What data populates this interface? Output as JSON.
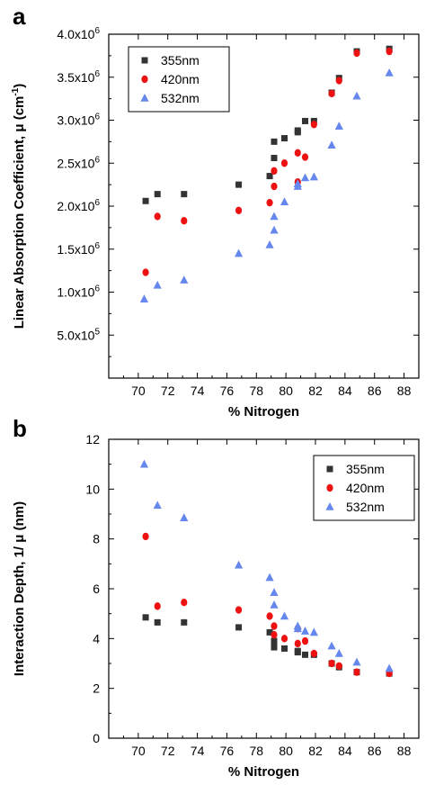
{
  "chart_data": [
    {
      "panel_label": "a",
      "type": "scatter",
      "xlabel": "% Nitrogen",
      "ylabel": "Linear Absorption Coefficient, μ",
      "ylabel_unit": " (cm",
      "ylabel_unit_sup": "-1",
      "ylabel_unit_end": ")",
      "xlim": [
        68,
        89
      ],
      "ylim": [
        0,
        4000000
      ],
      "x_ticks": [
        {
          "value": 70,
          "label": "70"
        },
        {
          "value": 72,
          "label": "72"
        },
        {
          "value": 74,
          "label": "74"
        },
        {
          "value": 76,
          "label": "76"
        },
        {
          "value": 78,
          "label": "78"
        },
        {
          "value": 80,
          "label": "80"
        },
        {
          "value": 82,
          "label": "82"
        },
        {
          "value": 84,
          "label": "84"
        },
        {
          "value": 86,
          "label": "86"
        },
        {
          "value": 88,
          "label": "88"
        }
      ],
      "y_ticks": [
        {
          "value": 500000,
          "label": "5.0x10",
          "exp": "5"
        },
        {
          "value": 1000000,
          "label": "1.0x10",
          "exp": "6"
        },
        {
          "value": 1500000,
          "label": "1.5x10",
          "exp": "6"
        },
        {
          "value": 2000000,
          "label": "2.0x10",
          "exp": "6"
        },
        {
          "value": 2500000,
          "label": "2.5x10",
          "exp": "6"
        },
        {
          "value": 3000000,
          "label": "3.0x10",
          "exp": "6"
        },
        {
          "value": 3500000,
          "label": "3.5x10",
          "exp": "6"
        },
        {
          "value": 4000000,
          "label": "4.0x10",
          "exp": "6"
        }
      ],
      "legend_position": "top-left",
      "series": [
        {
          "name": "355nm",
          "marker": "square",
          "color": "#333333",
          "points": [
            [
              70.5,
              2060000
            ],
            [
              71.3,
              2140000
            ],
            [
              73.1,
              2140000
            ],
            [
              76.8,
              2250000
            ],
            [
              78.9,
              2350000
            ],
            [
              79.2,
              2560000
            ],
            [
              79.2,
              2750000
            ],
            [
              79.9,
              2790000
            ],
            [
              80.8,
              2860000
            ],
            [
              80.8,
              2880000
            ],
            [
              81.3,
              2990000
            ],
            [
              81.9,
              2990000
            ],
            [
              83.1,
              3320000
            ],
            [
              83.6,
              3490000
            ],
            [
              84.8,
              3800000
            ],
            [
              87.0,
              3830000
            ]
          ]
        },
        {
          "name": "420nm",
          "marker": "circle",
          "color": "#ee1111",
          "points": [
            [
              70.5,
              1230000
            ],
            [
              71.3,
              1880000
            ],
            [
              73.1,
              1830000
            ],
            [
              76.8,
              1950000
            ],
            [
              78.9,
              2040000
            ],
            [
              79.2,
              2230000
            ],
            [
              79.2,
              2410000
            ],
            [
              79.9,
              2500000
            ],
            [
              80.8,
              2280000
            ],
            [
              80.8,
              2620000
            ],
            [
              81.3,
              2570000
            ],
            [
              81.9,
              2950000
            ],
            [
              83.1,
              3310000
            ],
            [
              83.6,
              3460000
            ],
            [
              84.8,
              3780000
            ],
            [
              87.0,
              3800000
            ]
          ]
        },
        {
          "name": "532nm",
          "marker": "triangle",
          "color": "#6688ee",
          "points": [
            [
              70.4,
              920000
            ],
            [
              71.3,
              1080000
            ],
            [
              73.1,
              1140000
            ],
            [
              76.8,
              1450000
            ],
            [
              78.9,
              1550000
            ],
            [
              79.2,
              1720000
            ],
            [
              79.2,
              1880000
            ],
            [
              79.9,
              2050000
            ],
            [
              80.8,
              2230000
            ],
            [
              80.8,
              2260000
            ],
            [
              81.3,
              2330000
            ],
            [
              81.9,
              2340000
            ],
            [
              83.1,
              2710000
            ],
            [
              83.6,
              2930000
            ],
            [
              84.8,
              3280000
            ],
            [
              87.0,
              3550000
            ]
          ]
        }
      ]
    },
    {
      "panel_label": "b",
      "type": "scatter",
      "xlabel": "% Nitrogen",
      "ylabel": "Interaction Depth, 1/ μ",
      "ylabel_unit": " (nm)",
      "xlim": [
        68,
        89
      ],
      "ylim": [
        0,
        12
      ],
      "x_ticks": [
        {
          "value": 70,
          "label": "70"
        },
        {
          "value": 72,
          "label": "72"
        },
        {
          "value": 74,
          "label": "74"
        },
        {
          "value": 76,
          "label": "76"
        },
        {
          "value": 78,
          "label": "78"
        },
        {
          "value": 80,
          "label": "80"
        },
        {
          "value": 82,
          "label": "82"
        },
        {
          "value": 84,
          "label": "84"
        },
        {
          "value": 86,
          "label": "86"
        },
        {
          "value": 88,
          "label": "88"
        }
      ],
      "y_ticks": [
        {
          "value": 0,
          "label": "0"
        },
        {
          "value": 2,
          "label": "2"
        },
        {
          "value": 4,
          "label": "4"
        },
        {
          "value": 6,
          "label": "6"
        },
        {
          "value": 8,
          "label": "8"
        },
        {
          "value": 10,
          "label": "10"
        },
        {
          "value": 12,
          "label": "12"
        }
      ],
      "legend_position": "top-right",
      "series": [
        {
          "name": "355nm",
          "marker": "square",
          "color": "#333333",
          "points": [
            [
              70.5,
              4.85
            ],
            [
              71.3,
              4.65
            ],
            [
              73.1,
              4.65
            ],
            [
              76.8,
              4.45
            ],
            [
              78.9,
              4.25
            ],
            [
              79.2,
              3.9
            ],
            [
              79.2,
              3.65
            ],
            [
              79.9,
              3.6
            ],
            [
              80.8,
              3.5
            ],
            [
              80.8,
              3.45
            ],
            [
              81.3,
              3.35
            ],
            [
              81.9,
              3.35
            ],
            [
              83.1,
              3.0
            ],
            [
              83.6,
              2.85
            ],
            [
              84.8,
              2.65
            ],
            [
              87.0,
              2.6
            ]
          ]
        },
        {
          "name": "420nm",
          "marker": "circle",
          "color": "#ee1111",
          "points": [
            [
              70.5,
              8.1
            ],
            [
              71.3,
              5.3
            ],
            [
              73.1,
              5.45
            ],
            [
              76.8,
              5.15
            ],
            [
              78.9,
              4.9
            ],
            [
              79.2,
              4.5
            ],
            [
              79.2,
              4.15
            ],
            [
              79.9,
              4.0
            ],
            [
              80.8,
              4.4
            ],
            [
              80.8,
              3.8
            ],
            [
              81.3,
              3.9
            ],
            [
              81.9,
              3.4
            ],
            [
              83.1,
              3.0
            ],
            [
              83.6,
              2.9
            ],
            [
              84.8,
              2.65
            ],
            [
              87.0,
              2.6
            ]
          ]
        },
        {
          "name": "532nm",
          "marker": "triangle",
          "color": "#6688ee",
          "points": [
            [
              70.4,
              11.0
            ],
            [
              71.3,
              9.35
            ],
            [
              73.1,
              8.85
            ],
            [
              76.8,
              6.95
            ],
            [
              78.9,
              6.45
            ],
            [
              79.2,
              5.85
            ],
            [
              79.2,
              5.35
            ],
            [
              79.9,
              4.9
            ],
            [
              80.8,
              4.5
            ],
            [
              80.8,
              4.4
            ],
            [
              81.3,
              4.3
            ],
            [
              81.9,
              4.25
            ],
            [
              83.1,
              3.7
            ],
            [
              83.6,
              3.4
            ],
            [
              84.8,
              3.05
            ],
            [
              87.0,
              2.8
            ]
          ]
        }
      ]
    }
  ]
}
